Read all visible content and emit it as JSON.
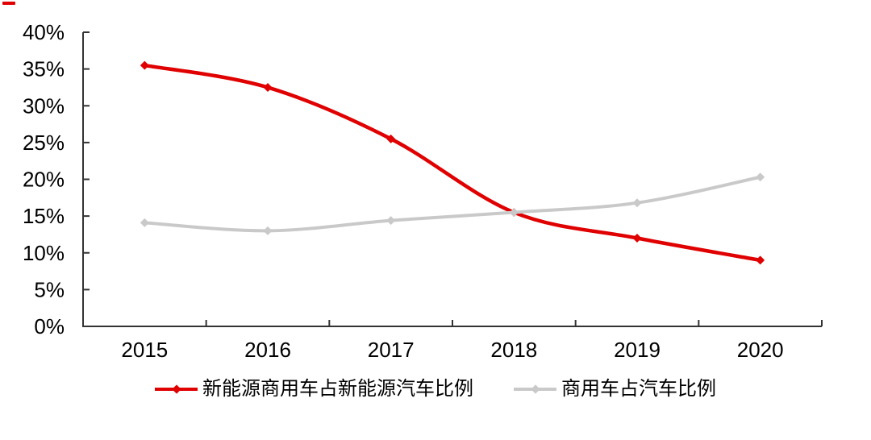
{
  "chart_data": {
    "type": "line",
    "categories": [
      "2015",
      "2016",
      "2017",
      "2018",
      "2019",
      "2020"
    ],
    "series": [
      {
        "name": "新能源商用车占新能源汽车比例",
        "values": [
          35.5,
          32.5,
          25.5,
          15.5,
          12.0,
          9.0
        ],
        "color": "#e00000",
        "line_width": 4.5
      },
      {
        "name": "商用车占汽车比例",
        "values": [
          14.1,
          13.0,
          14.4,
          15.5,
          16.8,
          20.3
        ],
        "color": "#c9c9c9",
        "line_width": 4
      }
    ],
    "title": "",
    "xlabel": "",
    "ylabel": "",
    "ylim": [
      0,
      40
    ],
    "ytick_step": 5,
    "ytick_labels": [
      "0%",
      "5%",
      "10%",
      "15%",
      "20%",
      "25%",
      "30%",
      "35%",
      "40%"
    ],
    "grid": false,
    "legend_position": "bottom",
    "line_style": "smooth",
    "marker": "diamond"
  },
  "style": {
    "axis_color": "#333333",
    "text_color": "#000000",
    "background": "#ffffff",
    "stray_mark_color": "#e00000"
  }
}
